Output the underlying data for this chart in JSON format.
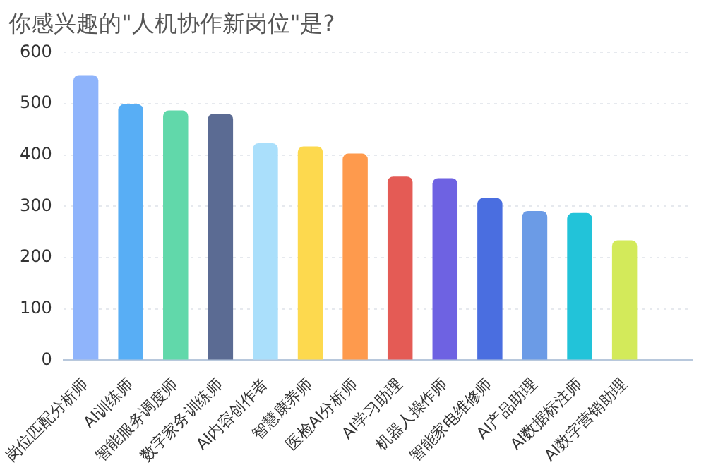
{
  "chart_data": {
    "type": "bar",
    "title": "你感兴趣的\"人机协作新岗位\"是?",
    "categories": [
      "岗位匹配分析师",
      "AI训练师",
      "智能服务调度师",
      "数字家务训练师",
      "AI内容创作者",
      "智慧康养师",
      "医检AI分析师",
      "AI学习助理",
      "机器人操作师",
      "智能家电维修师",
      "AI产品助理",
      "AI数据标注师",
      "AI数字营销助理",
      null
    ],
    "values": [
      556,
      499,
      487,
      481,
      423,
      417,
      403,
      358,
      355,
      316,
      291,
      287,
      234,
      null
    ],
    "colors": [
      "#8fb4fb",
      "#58aef5",
      "#61d8aa",
      "#5b6b93",
      "#aadffb",
      "#fdd94e",
      "#fe9a4d",
      "#e45b55",
      "#6e62e2",
      "#4a6ee0",
      "#6b9be6",
      "#22c3d9",
      "#d3ea5a",
      "#cccccc"
    ],
    "ylim": [
      0,
      600
    ],
    "yticks": [
      0,
      100,
      200,
      300,
      400,
      500,
      600
    ],
    "grid": "y",
    "legend": false
  }
}
